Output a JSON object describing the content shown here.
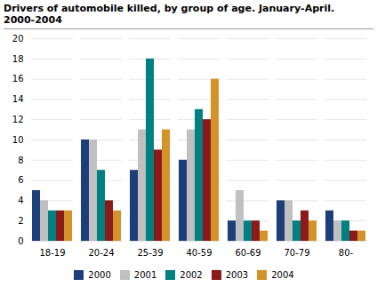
{
  "chart_data": {
    "type": "bar",
    "title": "Drivers of automobile killed, by group of age. January-April.\n2000-2004",
    "categories": [
      "18-19",
      "20-24",
      "25-39",
      "40-59",
      "60-69",
      "70-79",
      "80-"
    ],
    "series": [
      {
        "name": "2000",
        "color": "#1C3F7A",
        "values": [
          5,
          10,
          7,
          8,
          2,
          4,
          3
        ]
      },
      {
        "name": "2001",
        "color": "#C0C0C0",
        "values": [
          4,
          10,
          11,
          11,
          5,
          4,
          2
        ]
      },
      {
        "name": "2002",
        "color": "#008080",
        "values": [
          3,
          7,
          18,
          13,
          2,
          2,
          2
        ]
      },
      {
        "name": "2003",
        "color": "#8B1A1A",
        "values": [
          3,
          4,
          9,
          12,
          2,
          3,
          1
        ]
      },
      {
        "name": "2004",
        "color": "#D4922A",
        "values": [
          3,
          3,
          11,
          16,
          1,
          2,
          1
        ]
      }
    ],
    "ylim": [
      0,
      20
    ],
    "yticks": [
      0,
      2,
      4,
      6,
      8,
      10,
      12,
      14,
      16,
      18,
      20
    ],
    "grid": true,
    "legend": "bottom"
  }
}
